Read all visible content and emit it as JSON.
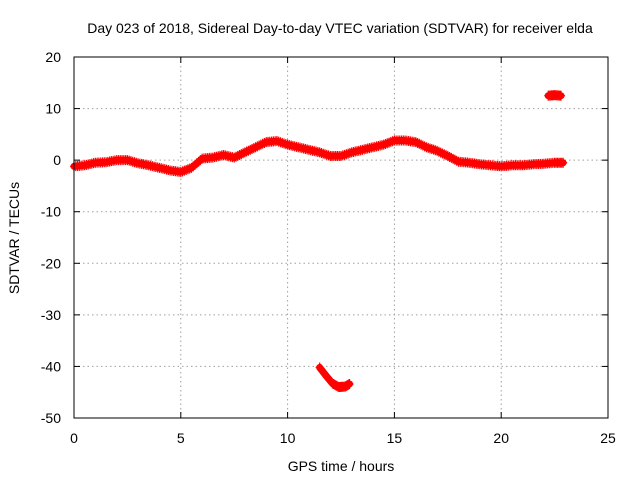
{
  "chart_data": {
    "type": "scatter",
    "title": "Day 023 of 2018, Sidereal Day-to-day VTEC variation (SDTVAR) for receiver elda",
    "xlabel": "GPS time / hours",
    "ylabel": "SDTVAR / TECUs",
    "xlim": [
      0,
      25
    ],
    "ylim": [
      -50,
      20
    ],
    "xticks": [
      0,
      5,
      10,
      15,
      20,
      25
    ],
    "yticks": [
      -50,
      -40,
      -30,
      -20,
      -10,
      0,
      10,
      20
    ],
    "grid": true,
    "series": [
      {
        "name": "SDTVAR",
        "color": "#ff0000",
        "segments": [
          {
            "x": [
              0.0,
              0.5,
              1.0,
              1.5,
              2.0,
              2.5,
              3.0,
              3.5,
              4.0,
              4.5,
              5.0,
              5.5,
              6.0,
              6.5,
              7.0,
              7.5,
              8.0,
              8.5,
              9.0,
              9.5,
              10.0,
              10.5,
              11.0,
              11.5,
              12.0,
              12.5,
              13.0,
              13.5,
              14.0,
              14.5,
              15.0,
              15.5,
              16.0,
              16.5,
              17.0,
              17.5,
              18.0,
              18.5,
              19.0,
              19.5,
              20.0,
              20.5,
              21.0,
              21.5,
              22.0,
              22.5,
              22.9
            ],
            "y": [
              -1.2,
              -1.0,
              -0.5,
              -0.4,
              0.0,
              0.0,
              -0.6,
              -1.0,
              -1.5,
              -2.0,
              -2.3,
              -1.5,
              0.3,
              0.5,
              1.0,
              0.5,
              1.5,
              2.5,
              3.5,
              3.7,
              3.0,
              2.5,
              2.0,
              1.5,
              0.8,
              0.8,
              1.5,
              2.0,
              2.5,
              3.0,
              3.8,
              3.8,
              3.5,
              2.5,
              1.8,
              0.8,
              -0.3,
              -0.5,
              -0.8,
              -1.0,
              -1.2,
              -1.0,
              -1.0,
              -0.8,
              -0.7,
              -0.5,
              -0.5
            ]
          },
          {
            "x": [
              11.5,
              11.8,
              12.1,
              12.4,
              12.7,
              12.9
            ],
            "y": [
              -40.2,
              -41.8,
              -43.3,
              -44.0,
              -43.9,
              -43.4
            ]
          },
          {
            "x": [
              22.2,
              22.5,
              22.8
            ],
            "y": [
              12.5,
              12.6,
              12.5
            ]
          }
        ]
      }
    ]
  }
}
